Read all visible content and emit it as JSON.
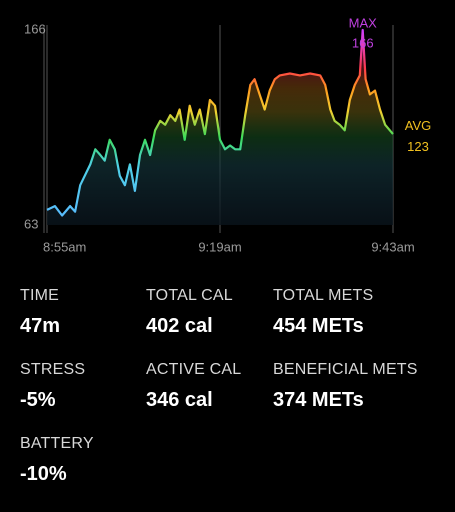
{
  "chart_data": {
    "type": "line",
    "x": [
      0,
      1.1,
      2.1,
      3.2,
      3.9,
      4.6,
      6.0,
      6.7,
      7.4,
      8.0,
      8.7,
      9.4,
      10.1,
      10.8,
      11.5,
      12.2,
      12.9,
      13.6,
      14.3,
      15.0,
      15.7,
      16.4,
      17.1,
      17.8,
      18.4,
      19.1,
      19.8,
      20.5,
      21.2,
      21.9,
      22.6,
      23.3,
      24.0,
      24.7,
      25.4,
      26.1,
      26.8,
      27.5,
      28.2,
      28.8,
      29.5,
      30.2,
      30.9,
      31.6,
      32.3,
      33.7,
      35.1,
      36.5,
      37.9,
      38.6,
      39.3,
      39.9,
      40.6,
      41.3,
      42.0,
      42.7,
      43.4,
      43.8,
      44.2,
      44.8,
      45.5,
      46.2,
      46.9,
      48.0
    ],
    "values": [
      71,
      73,
      68,
      73,
      70,
      84,
      95,
      103,
      100,
      97,
      108,
      103,
      89,
      84,
      95,
      81,
      100,
      108,
      100,
      113,
      118,
      116,
      121,
      118,
      124,
      108,
      126,
      116,
      124,
      111,
      129,
      126,
      108,
      103,
      105,
      103,
      103,
      121,
      137,
      140,
      132,
      124,
      134,
      140,
      142,
      143,
      142,
      143,
      142,
      137,
      124,
      118,
      116,
      113,
      129,
      137,
      142,
      166,
      140,
      132,
      134,
      124,
      116,
      111
    ],
    "xlim": [
      0,
      48
    ],
    "xticks": [
      {
        "value": 0,
        "label": "8:55am"
      },
      {
        "value": 24,
        "label": "9:19am"
      },
      {
        "value": 48,
        "label": "9:43am"
      }
    ],
    "ylim": [
      63,
      166
    ],
    "yticks": [
      63,
      166
    ],
    "max": {
      "label": "MAX",
      "value": 166
    },
    "avg": {
      "label": "AVG",
      "value": 123
    }
  },
  "stats": [
    {
      "label": "TIME",
      "value": "47m"
    },
    {
      "label": "TOTAL CAL",
      "value": "402 cal"
    },
    {
      "label": "TOTAL METS",
      "value": "454 METs"
    },
    {
      "label": "STRESS",
      "value": "-5%"
    },
    {
      "label": "ACTIVE CAL",
      "value": "346 cal"
    },
    {
      "label": "BENEFICIAL METS",
      "value": "374 METs"
    },
    {
      "label": "BATTERY",
      "value": "-10%"
    }
  ]
}
